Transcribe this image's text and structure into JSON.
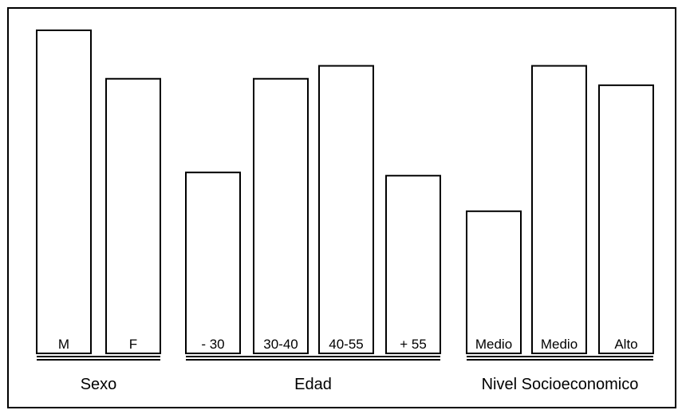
{
  "chart_data": {
    "type": "bar",
    "title": "",
    "xlabel": "",
    "ylabel": "",
    "ylim": [
      0,
      100
    ],
    "grid": false,
    "legend": "none",
    "groups": [
      {
        "label": "Sexo",
        "categories": [
          "M",
          "F"
        ],
        "values": [
          100,
          85
        ]
      },
      {
        "label": "Edad",
        "categories": [
          "- 30",
          "30-40",
          "40-55",
          "+ 55"
        ],
        "values": [
          56,
          85,
          89,
          55
        ]
      },
      {
        "label": "Nivel Socioeconomico",
        "categories": [
          "Medio",
          "Medio",
          "Alto"
        ],
        "values": [
          44,
          89,
          83
        ]
      }
    ],
    "colors": {
      "bar_fill": "#ffffff",
      "stroke": "#000000"
    }
  }
}
